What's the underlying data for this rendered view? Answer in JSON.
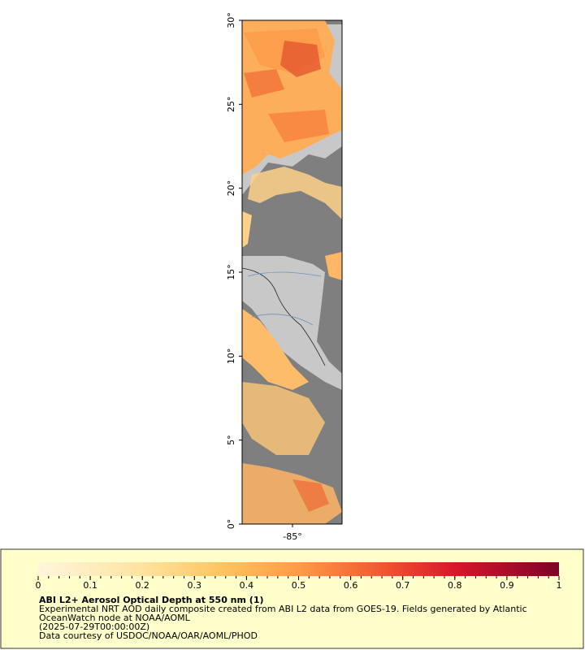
{
  "map": {
    "lat_ticks": [
      {
        "value": 0,
        "label": "0°"
      },
      {
        "value": 5,
        "label": "5°"
      },
      {
        "value": 10,
        "label": "10°"
      },
      {
        "value": 15,
        "label": "15°"
      },
      {
        "value": 20,
        "label": "20°"
      },
      {
        "value": 25,
        "label": "25°"
      },
      {
        "value": 30,
        "label": "30°"
      }
    ],
    "lon_ticks": [
      {
        "value": -85,
        "label": "-85°"
      }
    ]
  },
  "colorbar": {
    "ticks": [
      0,
      0.1,
      0.2,
      0.3,
      0.4,
      0.5,
      0.6,
      0.7,
      0.8,
      0.9,
      1
    ],
    "title": "ABI L2+ Aerosol Optical Depth at 550 nm (1)",
    "lines": [
      "Experimental NRT AOD daily composite created from ABI L2 data from GOES-19. Fields generated by Atlantic",
      "OceanWatch node at NOAA/AOML",
      "(2025-07-29T00:00:00Z)",
      "Data courtesy of USDOC/NOAA/OAR/AOML/PHOD"
    ]
  }
}
